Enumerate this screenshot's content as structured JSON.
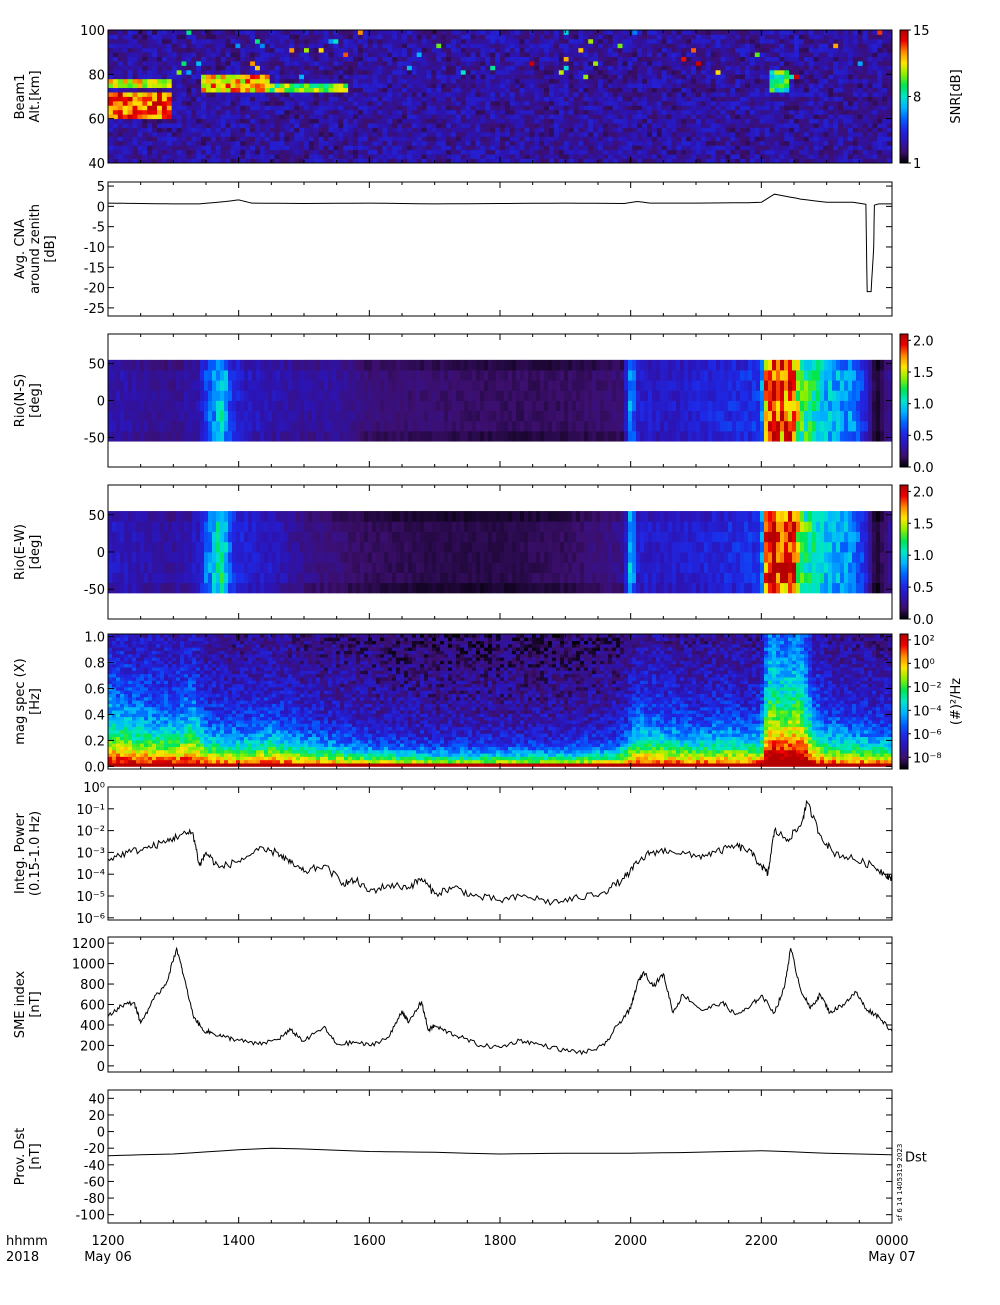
{
  "x_axis": {
    "label_row1": "hhmm",
    "label_row2": "2018",
    "ticks": [
      {
        "value": 0,
        "label": "1200",
        "date": "May 06"
      },
      {
        "value": 2,
        "label": "1400",
        "date": ""
      },
      {
        "value": 4,
        "label": "1600",
        "date": ""
      },
      {
        "value": 6,
        "label": "1800",
        "date": ""
      },
      {
        "value": 8,
        "label": "2000",
        "date": ""
      },
      {
        "value": 10,
        "label": "2200",
        "date": ""
      },
      {
        "value": 12,
        "label": "0000",
        "date": "May 07"
      }
    ],
    "range_hours": [
      0,
      12
    ]
  },
  "colorscales": {
    "rainbow": [
      "#000000",
      "#3c0f6e",
      "#2c14b4",
      "#1e28e6",
      "#0064ff",
      "#00b4ff",
      "#00e6c8",
      "#00e650",
      "#8cf000",
      "#ffe600",
      "#ff8c00",
      "#f00000",
      "#b40000"
    ]
  },
  "chart_data": [
    {
      "id": "beam1",
      "type": "heatmap",
      "ylabel_lines": [
        "Beam1",
        "Alt.[km]"
      ],
      "ylim": [
        40,
        100
      ],
      "yticks": [
        40,
        60,
        80,
        100
      ],
      "colorbar": {
        "label": "SNR[dB]",
        "range": [
          1,
          15
        ],
        "ticks": [
          1,
          8,
          15
        ],
        "tick_labels": [
          "1",
          "8",
          "15"
        ]
      },
      "background_value": 3,
      "regions": [
        {
          "x0": 0.0,
          "x1": 1.0,
          "y0": 61,
          "y1": 72,
          "value": 13
        },
        {
          "x0": 0.0,
          "x1": 1.0,
          "y0": 74,
          "y1": 78,
          "value": 11
        },
        {
          "x0": 1.4,
          "x1": 2.5,
          "y0": 72,
          "y1": 80,
          "value": 12
        },
        {
          "x0": 2.5,
          "x1": 3.7,
          "y0": 72,
          "y1": 75,
          "value": 10
        },
        {
          "x0": 10.1,
          "x1": 10.4,
          "y0": 72,
          "y1": 82,
          "value": 9
        }
      ]
    },
    {
      "id": "cna",
      "type": "line",
      "ylabel_lines": [
        "Avg. CNA",
        "around zenith",
        "[dB]"
      ],
      "ylim": [
        -27,
        6
      ],
      "yticks": [
        5,
        0,
        -5,
        -10,
        -15,
        -20,
        -25
      ],
      "x": [
        0,
        0.5,
        1.0,
        1.4,
        1.8,
        2.0,
        2.2,
        3.0,
        4.0,
        5.0,
        6.0,
        7.0,
        7.9,
        8.1,
        8.3,
        9.0,
        9.8,
        10.0,
        10.2,
        10.4,
        10.6,
        11.0,
        11.4,
        11.6,
        11.62,
        11.68,
        11.72,
        11.73,
        11.8,
        11.9,
        12.0
      ],
      "y": [
        0.8,
        0.7,
        0.6,
        0.6,
        1.2,
        1.6,
        0.8,
        0.7,
        0.8,
        0.6,
        0.7,
        0.8,
        0.7,
        1.2,
        0.8,
        0.8,
        0.9,
        1.0,
        3.0,
        2.4,
        1.8,
        1.0,
        1.0,
        0.5,
        -21,
        -21,
        -10,
        0.3,
        0.6,
        0.6,
        0.6
      ]
    },
    {
      "id": "rio_ns",
      "type": "heatmap",
      "ylabel_lines": [
        "Rio(N-S)",
        "[deg]"
      ],
      "ylim": [
        -90,
        90
      ],
      "yticks": [
        50,
        0,
        -50
      ],
      "y_extent": [
        -55,
        55
      ],
      "colorbar": {
        "label": "",
        "range": [
          0,
          2.1
        ],
        "ticks": [
          0,
          0.5,
          1.0,
          1.5,
          2.0
        ],
        "tick_labels": [
          "0.0",
          "0.5",
          "1.0",
          "1.5",
          "2.0"
        ]
      },
      "profile_x": [
        0,
        0.5,
        1.0,
        1.4,
        1.5,
        1.75,
        1.9,
        2.1,
        2.5,
        3.0,
        3.5,
        4.0,
        5.0,
        6.0,
        7.0,
        7.9,
        8.0,
        8.1,
        8.5,
        9.0,
        9.5,
        10.0,
        10.05,
        10.2,
        10.5,
        10.6,
        11.0,
        11.4,
        11.6,
        11.75,
        12.0
      ],
      "profile_v": [
        0.35,
        0.3,
        0.25,
        0.35,
        0.6,
        1.0,
        0.5,
        0.4,
        0.35,
        0.3,
        0.3,
        0.2,
        0.18,
        0.15,
        0.15,
        0.2,
        0.9,
        0.45,
        0.4,
        0.45,
        0.5,
        0.55,
        1.7,
        1.9,
        1.8,
        1.3,
        0.9,
        0.8,
        0.5,
        0.05,
        0.3
      ]
    },
    {
      "id": "rio_ew",
      "type": "heatmap",
      "ylabel_lines": [
        "Rio(E-W)",
        "[deg]"
      ],
      "ylim": [
        -90,
        90
      ],
      "yticks": [
        50,
        0,
        -50
      ],
      "y_extent": [
        -55,
        55
      ],
      "colorbar": {
        "label": "",
        "range": [
          0,
          2.1
        ],
        "ticks": [
          0,
          0.5,
          1.0,
          1.5,
          2.0
        ],
        "tick_labels": [
          "0.0",
          "0.5",
          "1.0",
          "1.5",
          "2.0"
        ]
      },
      "profile_x": [
        0,
        0.5,
        1.0,
        1.4,
        1.5,
        1.75,
        1.9,
        2.1,
        2.5,
        3.0,
        3.5,
        4.0,
        5.0,
        6.0,
        7.0,
        7.9,
        8.0,
        8.1,
        8.5,
        9.0,
        9.5,
        10.0,
        10.05,
        10.2,
        10.5,
        10.6,
        11.0,
        11.4,
        11.6,
        11.75,
        12.0
      ],
      "profile_v": [
        0.4,
        0.35,
        0.3,
        0.4,
        0.7,
        1.1,
        0.55,
        0.45,
        0.4,
        0.25,
        0.2,
        0.15,
        0.12,
        0.12,
        0.15,
        0.25,
        1.0,
        0.45,
        0.4,
        0.45,
        0.5,
        0.55,
        1.8,
        2.0,
        1.8,
        1.3,
        0.9,
        0.8,
        0.5,
        0.05,
        0.3
      ]
    },
    {
      "id": "mag_spec",
      "type": "heatmap",
      "ylabel_lines": [
        "mag spec (X)",
        "[Hz]"
      ],
      "ylim": [
        -0.02,
        1.02
      ],
      "yticks": [
        0.0,
        0.2,
        0.4,
        0.6,
        0.8,
        1.0
      ],
      "ytick_labels": [
        "0.0",
        "0.2",
        "0.4",
        "0.6",
        "0.8",
        "1.0"
      ],
      "colorbar": {
        "label": "(#)²/Hz",
        "range": [
          -9,
          2.5
        ],
        "log": true,
        "ticks": [
          2,
          0,
          -2,
          -4,
          -6,
          -8
        ],
        "tick_labels": [
          "10²",
          "10⁰",
          "10⁻²",
          "10⁻⁴",
          "10⁻⁶",
          "10⁻⁸"
        ]
      },
      "activity_x": [
        0,
        0.5,
        1.0,
        1.3,
        1.5,
        2.0,
        2.5,
        3.0,
        3.5,
        4.0,
        5.0,
        6.0,
        7.0,
        7.8,
        8.1,
        8.5,
        9.0,
        9.5,
        9.8,
        10.0,
        10.1,
        10.3,
        10.6,
        10.8,
        11.0,
        11.5,
        12.0
      ],
      "activity_v": [
        0.6,
        0.5,
        0.45,
        0.55,
        0.35,
        0.3,
        0.35,
        0.25,
        0.2,
        0.15,
        0.1,
        0.1,
        0.1,
        0.15,
        0.4,
        0.35,
        0.3,
        0.35,
        0.3,
        0.35,
        1.0,
        0.9,
        0.95,
        0.5,
        0.35,
        0.3,
        0.25
      ]
    },
    {
      "id": "integ_power",
      "type": "line",
      "ylabel_lines": [
        "Integ. Power",
        "(0.15-1.0 Hz)"
      ],
      "ylog": true,
      "ylim": [
        -6.1,
        0
      ],
      "yticks": [
        0,
        -1,
        -2,
        -3,
        -4,
        -5,
        -6
      ],
      "ytick_labels": [
        "10⁰",
        "10⁻¹",
        "10⁻²",
        "10⁻³",
        "10⁻⁴",
        "10⁻⁵",
        "10⁻⁶"
      ],
      "x": [
        0,
        0.3,
        0.6,
        0.9,
        1.1,
        1.3,
        1.4,
        1.5,
        1.7,
        2.0,
        2.3,
        2.6,
        2.8,
        3.0,
        3.3,
        3.6,
        3.8,
        4.0,
        4.3,
        4.6,
        4.8,
        5.0,
        5.3,
        5.6,
        6.0,
        6.4,
        6.8,
        7.2,
        7.6,
        7.9,
        8.1,
        8.3,
        8.6,
        9.0,
        9.3,
        9.6,
        9.8,
        10.0,
        10.1,
        10.2,
        10.4,
        10.6,
        10.7,
        10.9,
        11.1,
        11.4,
        11.7,
        11.9,
        12.0
      ],
      "y": [
        -3.3,
        -3.0,
        -2.8,
        -2.5,
        -2.2,
        -2.1,
        -3.6,
        -3.0,
        -3.7,
        -3.4,
        -2.9,
        -3.0,
        -3.5,
        -3.9,
        -3.6,
        -4.4,
        -4.3,
        -4.8,
        -4.5,
        -4.6,
        -4.2,
        -4.9,
        -4.6,
        -5.0,
        -5.2,
        -5.0,
        -5.3,
        -5.1,
        -4.8,
        -4.2,
        -3.5,
        -3.0,
        -2.9,
        -3.2,
        -3.0,
        -2.7,
        -2.9,
        -3.6,
        -4.0,
        -2.0,
        -2.4,
        -1.8,
        -0.7,
        -2.2,
        -3.0,
        -3.3,
        -3.6,
        -4.0,
        -4.2
      ]
    },
    {
      "id": "sme",
      "type": "line",
      "ylabel_lines": [
        "SME index",
        "[nT]"
      ],
      "ylim": [
        -60,
        1260
      ],
      "yticks": [
        0,
        200,
        400,
        600,
        800,
        1000,
        1200
      ],
      "x": [
        0,
        0.2,
        0.4,
        0.5,
        0.7,
        0.9,
        1.05,
        1.15,
        1.3,
        1.45,
        1.6,
        1.8,
        2.0,
        2.3,
        2.6,
        2.8,
        3.0,
        3.3,
        3.5,
        3.8,
        4.0,
        4.3,
        4.5,
        4.6,
        4.8,
        4.9,
        5.0,
        5.2,
        5.4,
        5.7,
        6.0,
        6.3,
        6.6,
        7.0,
        7.3,
        7.6,
        7.8,
        8.0,
        8.1,
        8.2,
        8.35,
        8.5,
        8.65,
        8.8,
        9.1,
        9.4,
        9.6,
        9.8,
        10.0,
        10.2,
        10.35,
        10.45,
        10.6,
        10.75,
        10.9,
        11.05,
        11.25,
        11.45,
        11.6,
        11.8,
        12.0
      ],
      "y": [
        480,
        590,
        620,
        420,
        650,
        820,
        1150,
        900,
        500,
        350,
        320,
        280,
        250,
        210,
        260,
        350,
        240,
        380,
        210,
        230,
        200,
        280,
        540,
        420,
        630,
        350,
        390,
        330,
        280,
        200,
        180,
        250,
        210,
        150,
        130,
        200,
        400,
        560,
        800,
        920,
        780,
        900,
        520,
        700,
        540,
        620,
        500,
        560,
        690,
        520,
        760,
        1150,
        750,
        560,
        700,
        520,
        600,
        720,
        560,
        480,
        340
      ]
    },
    {
      "id": "dst",
      "type": "line",
      "ylabel_lines": [
        "Prov. Dst",
        "[nT]"
      ],
      "series_label": "Dst",
      "ylim": [
        -110,
        50
      ],
      "yticks": [
        40,
        20,
        0,
        -20,
        -40,
        -60,
        -80,
        -100
      ],
      "stamp": "sf 6 14 1405319 2023",
      "x": [
        0,
        1,
        2,
        2.5,
        3,
        4,
        5,
        6,
        7,
        8,
        9,
        10,
        11,
        12
      ],
      "y": [
        -29,
        -27,
        -22,
        -20,
        -21,
        -24,
        -25,
        -27,
        -26,
        -26,
        -25,
        -23,
        -26,
        -28
      ]
    }
  ]
}
